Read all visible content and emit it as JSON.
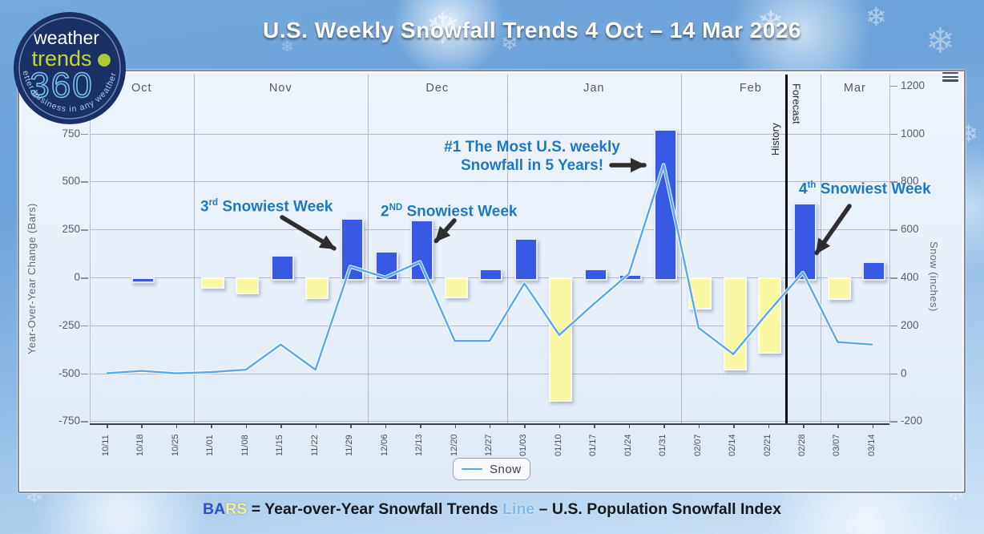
{
  "title": "U.S. Weekly Snowfall Trends 4 Oct – 14 Mar 2026",
  "logo": {
    "word1": "weather",
    "word2": "trends",
    "word3": "360",
    "tagline": "better business in any weather®"
  },
  "caption": {
    "bars_blue": "BA",
    "bars_yellow": "RS",
    "bars_rest": " = Year-over-Year Snowfall Trends  ",
    "line_word": "Line",
    "line_rest": " – U.S. Population Snowfall Index"
  },
  "chart_data": {
    "type": "combo-bar-line",
    "categories": [
      "10/11",
      "10/18",
      "10/25",
      "11/01",
      "11/08",
      "11/15",
      "11/22",
      "11/29",
      "12/06",
      "12/13",
      "12/20",
      "12/27",
      "01/03",
      "01/10",
      "01/17",
      "01/24",
      "01/31",
      "02/07",
      "02/14",
      "02/21",
      "02/28",
      "03/07",
      "03/14"
    ],
    "month_bands": [
      {
        "label": "Oct",
        "span": 3
      },
      {
        "label": "Nov",
        "span": 5
      },
      {
        "label": "Dec",
        "span": 4
      },
      {
        "label": "Jan",
        "span": 5
      },
      {
        "label": "Feb",
        "span": 4
      },
      {
        "label": "Mar",
        "span": 2
      }
    ],
    "series": [
      {
        "name": "Year-over-Year Snowfall Trends",
        "type": "bar",
        "axis": "left",
        "positive_color": "#3759e3",
        "negative_color": "#fbf8a3",
        "color_overrides": {
          "1": "#3759e3"
        },
        "values": [
          0,
          -10,
          0,
          -40,
          -70,
          115,
          -95,
          310,
          140,
          300,
          -90,
          45,
          205,
          -630,
          45,
          15,
          775,
          -150,
          -470,
          -380,
          390,
          -100,
          85
        ]
      },
      {
        "name": "Snow",
        "type": "line",
        "axis": "right",
        "color": "#57a7ee",
        "values": [
          0,
          10,
          0,
          5,
          15,
          120,
          15,
          445,
          400,
          465,
          135,
          135,
          375,
          160,
          290,
          415,
          870,
          190,
          80,
          255,
          420,
          130,
          120
        ]
      }
    ],
    "left_axis": {
      "title": "Year-Over-Year Change (Bars)",
      "ticks": [
        750,
        500,
        250,
        0,
        -250,
        -500,
        -750
      ],
      "max": 750,
      "min": -750
    },
    "right_axis": {
      "title": "Snow (inches)",
      "ticks": [
        1200,
        1000,
        800,
        600,
        400,
        200,
        0,
        -200
      ],
      "max": 1200,
      "min": -200
    },
    "divider": {
      "after_index": 19,
      "left_label": "History",
      "right_label": "Forecast"
    },
    "annotations": [
      {
        "id": "third",
        "prefix": "3",
        "sup": "rd",
        "text": "  Snowiest Week"
      },
      {
        "id": "second",
        "prefix": "2",
        "sup": "ND",
        "text": " Snowiest Week"
      },
      {
        "id": "first",
        "lines": [
          "#1 The Most U.S. weekly",
          "Snowfall in 5 Years!"
        ]
      },
      {
        "id": "fourth",
        "prefix": "4",
        "sup": "th",
        "text": " Snowiest Week"
      }
    ],
    "legend": {
      "position": "bottom",
      "label": "Snow"
    },
    "grid": true
  }
}
